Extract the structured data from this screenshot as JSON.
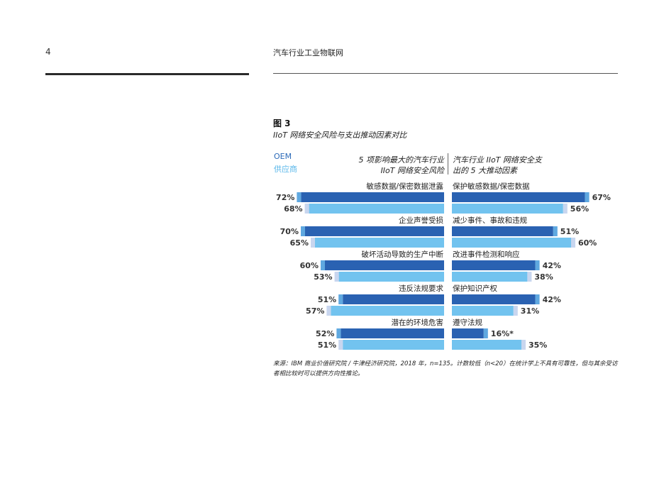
{
  "page": {
    "number": "4",
    "header_title": "汽车行业工业物联网",
    "figure_label": "图 3",
    "figure_title": "IIoT 网络安全风险与支出推动因素对比",
    "legend": {
      "oem": "OEM",
      "supplier": "供应商"
    },
    "left_header": [
      "5 项影响最大的汽车行业",
      "IIoT 网络安全风险"
    ],
    "right_header": [
      "汽车行业 IIoT 网络安全支",
      "出的 5 大推动因素"
    ],
    "footnote": "来源：IBM 商业价值研究院 / 牛津经济研究院，2018 年，n=135。计数较低（n<20）在统计学上不具有可靠性，但与其余受访者相比较时可以提供方向性推论。"
  },
  "chart_data": {
    "type": "bar",
    "orientation": "horizontal-diverging",
    "colors": {
      "oem": "#2a62b2",
      "supplier": "#72c3ef",
      "oem_cap": "#5fa8e0",
      "supplier_cap": "#c8d6ef"
    },
    "left": {
      "title": "5 项影响最大的汽车行业 IIoT 网络安全风险",
      "categories": [
        "敏感数据/保密数据泄露",
        "企业声誉受损",
        "破坏活动导致的生产中断",
        "违反法规要求",
        "潜在的环境危害"
      ],
      "series": [
        {
          "name": "OEM",
          "values": [
            72,
            70,
            60,
            51,
            52
          ],
          "labels": [
            "72%",
            "70%",
            "60%",
            "51%",
            "52%"
          ]
        },
        {
          "name": "供应商",
          "values": [
            68,
            65,
            53,
            57,
            51
          ],
          "labels": [
            "68%",
            "65%",
            "53%",
            "57%",
            "51%"
          ]
        }
      ]
    },
    "right": {
      "title": "汽车行业 IIoT 网络安全支出的 5 大推动因素",
      "categories": [
        "保护敏感数据/保密数据",
        "减少事件、事故和违规",
        "改进事件检测和响应",
        "保护知识产权",
        "遵守法规"
      ],
      "series": [
        {
          "name": "OEM",
          "values": [
            67,
            51,
            42,
            42,
            16
          ],
          "labels": [
            "67%",
            "51%",
            "42%",
            "42%",
            "16%*"
          ]
        },
        {
          "name": "供应商",
          "values": [
            56,
            60,
            38,
            31,
            35
          ],
          "labels": [
            "56%",
            "60%",
            "38%",
            "31%",
            "35%"
          ]
        }
      ]
    }
  }
}
